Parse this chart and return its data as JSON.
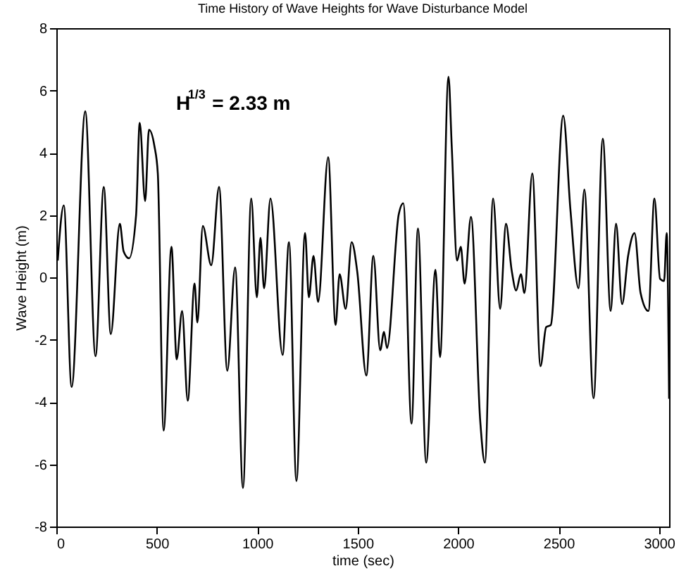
{
  "chart_data": {
    "type": "line",
    "title": "Time History of Wave Heights for Wave Disturbance Model",
    "xlabel": "time (sec)",
    "ylabel": "Wave Height (m)",
    "annotations": [
      "H$^{1/3}$ = 2.33 m"
    ],
    "x": [
      7,
      37,
      76,
      144,
      195,
      236,
      271,
      316,
      335,
      362,
      397,
      415,
      442,
      461,
      488,
      505,
      534,
      573,
      599,
      626,
      654,
      688,
      702,
      729,
      771,
      810,
      851,
      890,
      929,
      970,
      998,
      1016,
      1034,
      1066,
      1126,
      1158,
      1195,
      1238,
      1257,
      1280,
      1303,
      1353,
      1390,
      1410,
      1440,
      1470,
      1498,
      1543,
      1578,
      1612,
      1631,
      1646,
      1704,
      1727,
      1768,
      1800,
      1841,
      1887,
      1910,
      1952,
      1968,
      1995,
      2013,
      2032,
      2064,
      2110,
      2133,
      2174,
      2209,
      2238,
      2266,
      2289,
      2312,
      2330,
      2369,
      2410,
      2438,
      2461,
      2523,
      2559,
      2599,
      2628,
      2674,
      2720,
      2759,
      2786,
      2816,
      2846,
      2878,
      2908,
      2947,
      2977,
      3005,
      3025,
      3038,
      3050
    ],
    "series": [
      {
        "color": "#000000",
        "values": [
          0.54,
          2.31,
          -3.52,
          5.33,
          -2.53,
          2.9,
          -1.82,
          1.72,
          0.83,
          0.61,
          2.0,
          4.96,
          2.45,
          4.74,
          4.22,
          3.34,
          -4.92,
          0.98,
          -2.63,
          -1.08,
          -3.96,
          -0.2,
          -1.45,
          1.65,
          0.39,
          2.9,
          -3.0,
          0.32,
          -6.76,
          2.53,
          -0.64,
          1.27,
          -0.35,
          2.53,
          -2.49,
          1.13,
          -6.54,
          1.42,
          -0.64,
          0.69,
          -0.79,
          3.86,
          -1.53,
          0.1,
          -1.01,
          1.13,
          0.17,
          -3.15,
          0.69,
          -2.34,
          -1.75,
          -2.27,
          2.01,
          2.38,
          -4.7,
          1.57,
          -5.95,
          0.24,
          -2.56,
          6.44,
          4.22,
          0.54,
          0.98,
          -0.2,
          1.94,
          -4.62,
          -5.95,
          2.53,
          -1.01,
          1.72,
          0.24,
          -0.42,
          0.1,
          -0.5,
          3.34,
          -2.85,
          -1.6,
          -1.53,
          5.19,
          2.16,
          -0.35,
          2.82,
          -3.88,
          4.45,
          -1.08,
          1.72,
          -0.86,
          0.69,
          1.42,
          -0.5,
          -1.08,
          2.53,
          -0.05,
          -0.12,
          1.42,
          -3.9
        ]
      }
    ],
    "xlim": [
      0,
      3050
    ],
    "ylim": [
      -8,
      8
    ],
    "xticks": [
      0,
      500,
      1000,
      1500,
      2000,
      2500,
      3000
    ],
    "yticks": [
      -8,
      -6,
      -4,
      -2,
      0,
      2,
      4,
      6,
      8
    ],
    "grid": false,
    "marker": "none",
    "line_style": "solid"
  }
}
